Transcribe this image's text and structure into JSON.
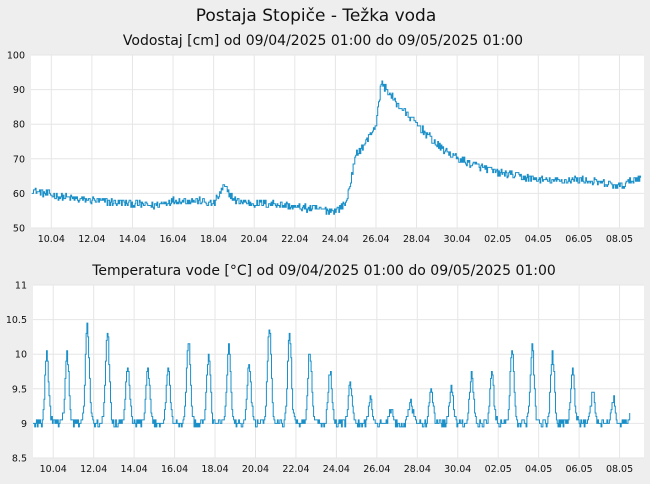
{
  "page_title": "Postaja Stopiče - Težka voda",
  "colors": {
    "background": "#eeeeee",
    "plot_background": "#ffffff",
    "line": "#1a8fc8",
    "grid": "#e6e6e6"
  },
  "chart_data": [
    {
      "type": "line",
      "title": "Vodostaj [cm] od 09/04/2025 01:00 do 09/05/2025 01:00",
      "xlabel": "",
      "ylabel": "",
      "x_range": [
        "2025-04-09",
        "2025-05-09"
      ],
      "ylim": [
        50,
        100
      ],
      "y_ticks": [
        50,
        60,
        70,
        80,
        90,
        100
      ],
      "y_tick_labels": [
        "50",
        "60",
        "70",
        "80",
        "90",
        "100"
      ],
      "x_ticks": [
        "2025-04-10",
        "2025-04-12",
        "2025-04-14",
        "2025-04-16",
        "2025-04-18",
        "2025-04-20",
        "2025-04-22",
        "2025-04-24",
        "2025-04-26",
        "2025-04-28",
        "2025-04-30",
        "2025-05-02",
        "2025-05-04",
        "2025-05-06",
        "2025-05-08"
      ],
      "x_tick_labels": [
        "10.04",
        "12.04",
        "14.04",
        "16.04",
        "18.04",
        "20.04",
        "22.04",
        "24.04",
        "26.04",
        "28.04",
        "30.04",
        "02.05",
        "04.05",
        "06.05",
        "08.05"
      ],
      "grid": true,
      "series": [
        {
          "x": [
            "2025-04-09 01:00",
            "2025-04-10 00:00",
            "2025-04-11 00:00",
            "2025-04-12 00:00",
            "2025-04-13 00:00",
            "2025-04-14 00:00",
            "2025-04-15 00:00",
            "2025-04-16 00:00",
            "2025-04-17 00:00",
            "2025-04-18 00:00",
            "2025-04-18 12:00",
            "2025-04-19 00:00",
            "2025-04-20 00:00",
            "2025-04-21 00:00",
            "2025-04-22 00:00",
            "2025-04-23 00:00",
            "2025-04-24 00:00",
            "2025-04-24 12:00",
            "2025-04-25 00:00",
            "2025-04-25 12:00",
            "2025-04-26 00:00",
            "2025-04-26 06:00",
            "2025-04-27 00:00",
            "2025-04-28 00:00",
            "2025-04-29 00:00",
            "2025-04-30 00:00",
            "2025-05-01 00:00",
            "2025-05-02 00:00",
            "2025-05-03 00:00",
            "2025-05-04 00:00",
            "2025-05-05 00:00",
            "2025-05-06 00:00",
            "2025-05-07 00:00",
            "2025-05-08 00:00",
            "2025-05-09 01:00"
          ],
          "y": [
            61,
            59.5,
            58.5,
            58,
            57.5,
            57,
            56.5,
            58,
            58,
            57,
            62,
            58,
            57,
            57,
            56,
            55.5,
            55,
            57,
            71,
            75,
            80,
            92,
            86,
            80,
            74,
            70,
            68,
            66,
            65,
            64,
            63.5,
            64,
            63,
            62,
            65
          ]
        }
      ]
    },
    {
      "type": "line",
      "title": "Temperatura vode [°C] od 09/04/2025 01:00 do 09/05/2025 01:00",
      "xlabel": "",
      "ylabel": "",
      "x_range": [
        "2025-04-09",
        "2025-05-09"
      ],
      "ylim": [
        8.5,
        11
      ],
      "y_ticks": [
        8.5,
        9,
        9.5,
        10,
        10.5,
        11
      ],
      "y_tick_labels": [
        "8.5",
        "9",
        "9.5",
        "10",
        "10.5",
        "11"
      ],
      "x_ticks": [
        "2025-04-10",
        "2025-04-12",
        "2025-04-14",
        "2025-04-16",
        "2025-04-18",
        "2025-04-20",
        "2025-04-22",
        "2025-04-24",
        "2025-04-26",
        "2025-04-28",
        "2025-04-30",
        "2025-05-02",
        "2025-05-04",
        "2025-05-06",
        "2025-05-08"
      ],
      "x_tick_labels": [
        "10.04",
        "12.04",
        "14.04",
        "16.04",
        "18.04",
        "20.04",
        "22.04",
        "24.04",
        "26.04",
        "28.04",
        "30.04",
        "02.05",
        "04.05",
        "06.05",
        "08.05"
      ],
      "grid": true,
      "daily_minimum_approx": 9.0,
      "series": [
        {
          "x": [
            "2025-04-09",
            "2025-04-10",
            "2025-04-11",
            "2025-04-12",
            "2025-04-13",
            "2025-04-14",
            "2025-04-15",
            "2025-04-16",
            "2025-04-17",
            "2025-04-18",
            "2025-04-19",
            "2025-04-20",
            "2025-04-21",
            "2025-04-22",
            "2025-04-23",
            "2025-04-24",
            "2025-04-25",
            "2025-04-26",
            "2025-04-27",
            "2025-04-28",
            "2025-04-29",
            "2025-04-30",
            "2025-05-01",
            "2025-05-02",
            "2025-05-03",
            "2025-05-04",
            "2025-05-05",
            "2025-05-06",
            "2025-05-07",
            "2025-05-08"
          ],
          "y": [
            10.0,
            10.0,
            10.4,
            10.3,
            9.85,
            9.75,
            9.8,
            10.2,
            9.95,
            10.1,
            9.85,
            10.4,
            10.3,
            10.05,
            9.75,
            9.6,
            9.35,
            9.2,
            9.3,
            9.5,
            9.5,
            9.7,
            9.75,
            10.05,
            10.1,
            10.0,
            9.8,
            9.45,
            9.35,
            9.4
          ]
        }
      ]
    }
  ]
}
